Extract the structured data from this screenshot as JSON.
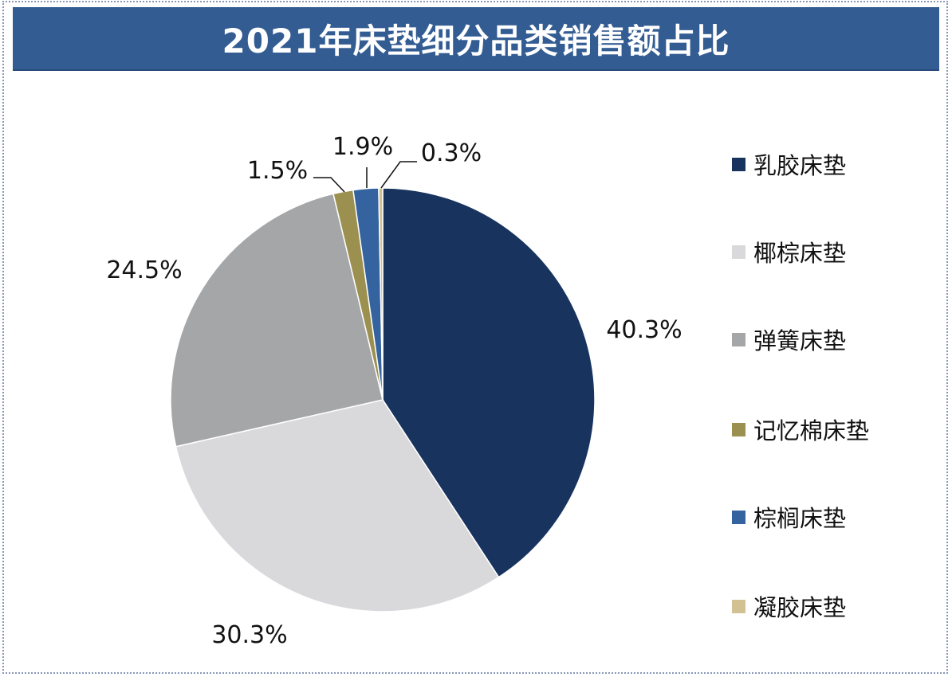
{
  "chart_data": {
    "type": "pie",
    "title": "2021年床垫细分品类销售额占比",
    "start_angle": "12 o'clock, clockwise",
    "legend_position": "right",
    "slices": [
      {
        "label": "乳胶床垫",
        "value": 40.3,
        "value_label": "40.3%",
        "color": "#17335e"
      },
      {
        "label": "椰棕床垫",
        "value": 30.3,
        "value_label": "30.3%",
        "color": "#d9d9db"
      },
      {
        "label": "弹簧床垫",
        "value": 24.5,
        "value_label": "24.5%",
        "color": "#a5a6a8"
      },
      {
        "label": "记忆棉床垫",
        "value": 1.5,
        "value_label": "1.5%",
        "color": "#9c9050"
      },
      {
        "label": "棕榈床垫",
        "value": 1.9,
        "value_label": "1.9%",
        "color": "#3563a0"
      },
      {
        "label": "凝胶床垫",
        "value": 0.3,
        "value_label": "0.3%",
        "color": "#d2c293"
      }
    ]
  },
  "colors": {
    "title_bar": "#335c92",
    "title_text": "#ffffff"
  }
}
